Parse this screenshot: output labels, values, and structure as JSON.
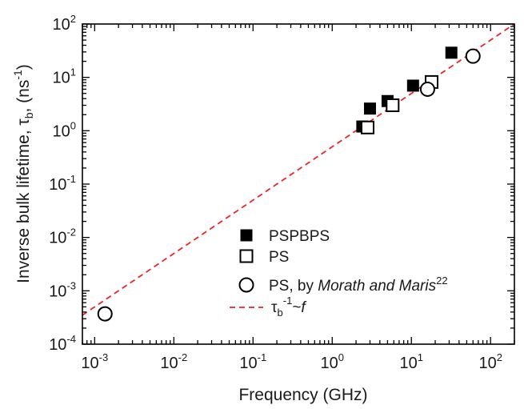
{
  "chart_data": {
    "type": "scatter",
    "xscale": "log",
    "yscale": "log",
    "xlim": [
      0.0007,
      200
    ],
    "ylim": [
      0.0001,
      100
    ],
    "xlabel": "Frequency (GHz)",
    "ylabel": {
      "base": "Inverse bulk lifetime, ",
      "symbol": "τ",
      "sub": "b",
      "mid": ", (ns",
      "sup": "-1",
      "end": ")"
    },
    "x_ticks": [
      {
        "base": "10",
        "exp": "-3"
      },
      {
        "base": "10",
        "exp": "-2"
      },
      {
        "base": "10",
        "exp": "-1"
      },
      {
        "base": "10",
        "exp": "0"
      },
      {
        "base": "10",
        "exp": "1"
      },
      {
        "base": "10",
        "exp": "2"
      }
    ],
    "y_ticks": [
      {
        "base": "10",
        "exp": "-4"
      },
      {
        "base": "10",
        "exp": "-3"
      },
      {
        "base": "10",
        "exp": "-2"
      },
      {
        "base": "10",
        "exp": "-1"
      },
      {
        "base": "10",
        "exp": "0"
      },
      {
        "base": "10",
        "exp": "1"
      },
      {
        "base": "10",
        "exp": "2"
      }
    ],
    "series": [
      {
        "name": "PSPBPS",
        "marker": "filled-square",
        "color": "#000000",
        "points": [
          [
            2.4,
            1.2
          ],
          [
            3.0,
            2.6
          ],
          [
            5.0,
            3.6
          ],
          [
            10.5,
            7.0
          ],
          [
            32,
            29
          ]
        ]
      },
      {
        "name": "PS",
        "marker": "open-square",
        "color": "#000000",
        "points": [
          [
            2.8,
            1.15
          ],
          [
            5.8,
            3.0
          ],
          [
            18,
            8.2
          ]
        ]
      },
      {
        "name": "PS, by Morath and Maris",
        "name_italic": "Morath and Maris",
        "name_prefix": "PS, by ",
        "name_sup": "22",
        "marker": "open-circle",
        "color": "#000000",
        "points": [
          [
            0.00135,
            0.00037
          ],
          [
            16,
            6.0
          ],
          [
            60,
            25
          ]
        ]
      }
    ],
    "fit_line": {
      "label_symbol": "τ",
      "label_sub": "b",
      "label_sup": "-1",
      "label_rel": "~",
      "label_var": "f",
      "slope": 1,
      "coefficient": 0.5,
      "color": "#e8262a",
      "style": "dashed"
    },
    "legend_position": "bottom-center",
    "grid": false
  }
}
